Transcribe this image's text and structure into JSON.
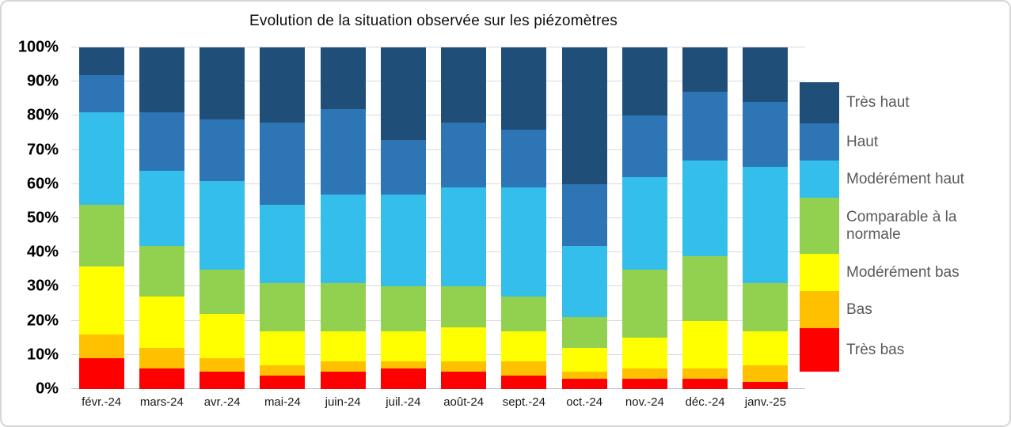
{
  "title": "Evolution de la situation observée sur les piézomètres",
  "y_axis": {
    "ticks": [
      "100%",
      "90%",
      "80%",
      "70%",
      "60%",
      "50%",
      "40%",
      "30%",
      "20%",
      "10%",
      "0%"
    ]
  },
  "chart_data": {
    "type": "bar",
    "stacked": true,
    "percent": true,
    "title": "Evolution de la situation observée sur les piézomètres",
    "categories": [
      "févr.-24",
      "mars-24",
      "avr.-24",
      "mai-24",
      "juin-24",
      "juil.-24",
      "août-24",
      "sept.-24",
      "oct.-24",
      "nov.-24",
      "déc.-24",
      "janv.-25"
    ],
    "series": [
      {
        "name": "Très bas",
        "color": "#FF0000",
        "values": [
          9,
          6,
          5,
          4,
          5,
          6,
          5,
          4,
          3,
          3,
          3,
          2
        ]
      },
      {
        "name": "Bas",
        "color": "#FFC000",
        "values": [
          7,
          6,
          4,
          3,
          3,
          2,
          3,
          4,
          2,
          3,
          3,
          5
        ]
      },
      {
        "name": "Modérément bas",
        "color": "#FFFF00",
        "values": [
          20,
          15,
          13,
          10,
          9,
          9,
          10,
          9,
          7,
          9,
          14,
          10
        ]
      },
      {
        "name": "Comparable à la normale",
        "color": "#92D050",
        "values": [
          18,
          15,
          13,
          14,
          14,
          13,
          12,
          10,
          9,
          20,
          19,
          14
        ]
      },
      {
        "name": "Modérément haut",
        "color": "#33BEEC",
        "values": [
          27,
          22,
          26,
          23,
          26,
          27,
          29,
          32,
          21,
          27,
          28,
          34
        ]
      },
      {
        "name": "Haut",
        "color": "#2E75B6",
        "values": [
          11,
          17,
          18,
          24,
          25,
          16,
          19,
          17,
          18,
          18,
          20,
          19
        ]
      },
      {
        "name": "Très haut",
        "color": "#1F4E79",
        "values": [
          8,
          19,
          21,
          22,
          18,
          27,
          22,
          24,
          40,
          20,
          13,
          16
        ]
      }
    ],
    "ylim": [
      0,
      100
    ],
    "grid": true,
    "legend_position": "right"
  },
  "legend": {
    "items": [
      {
        "label": "Très haut",
        "color": "#1F4E79"
      },
      {
        "label": "Haut",
        "color": "#2E75B6"
      },
      {
        "label": "Modérément haut",
        "color": "#33BEEC"
      },
      {
        "label": "Comparable à la normale",
        "color": "#92D050"
      },
      {
        "label": "Modérément bas",
        "color": "#FFFF00"
      },
      {
        "label": "Bas",
        "color": "#FFC000"
      },
      {
        "label": "Très bas",
        "color": "#FF0000"
      }
    ]
  }
}
